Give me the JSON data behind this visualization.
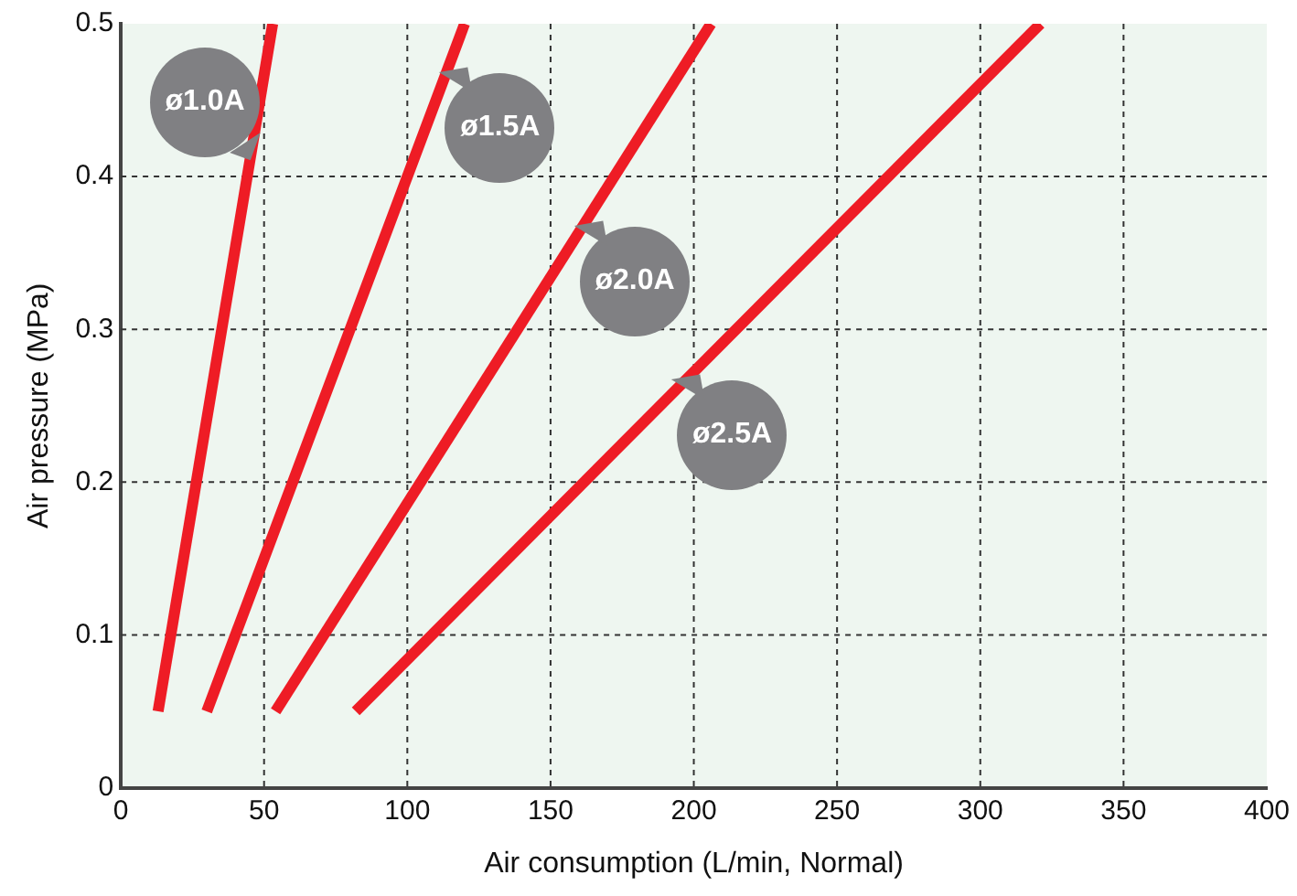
{
  "chart_data": {
    "type": "line",
    "xlabel": "Air consumption (L/min, Normal)",
    "ylabel": "Air pressure (MPa)",
    "xlim": [
      0,
      400
    ],
    "xticks": [
      0,
      50,
      100,
      150,
      200,
      250,
      300,
      350,
      400
    ],
    "ylim": [
      0,
      0.5
    ],
    "yticks": [
      0,
      0.1,
      0.2,
      0.3,
      0.4,
      0.5
    ],
    "grid": true,
    "line_style": "solid",
    "marker": "none",
    "series": [
      {
        "color": "#ee1c25",
        "x": [
          13,
          53
        ],
        "values": [
          0.05,
          0.5
        ]
      },
      {
        "color": "#ee1c25",
        "x": [
          30,
          120
        ],
        "values": [
          0.05,
          0.5
        ]
      },
      {
        "color": "#ee1c25",
        "x": [
          54,
          206
        ],
        "values": [
          0.05,
          0.5
        ]
      },
      {
        "color": "#ee1c25",
        "x": [
          82,
          321
        ],
        "values": [
          0.05,
          0.5
        ]
      }
    ],
    "annotations": [
      {
        "text": "ø1.0A",
        "x": 46,
        "y": 0.42
      },
      {
        "text": "ø1.5A",
        "x": 112,
        "y": 0.46
      },
      {
        "text": "ø2.0A",
        "x": 159,
        "y": 0.36
      },
      {
        "text": "ø2.5A",
        "x": 193,
        "y": 0.26
      }
    ]
  }
}
